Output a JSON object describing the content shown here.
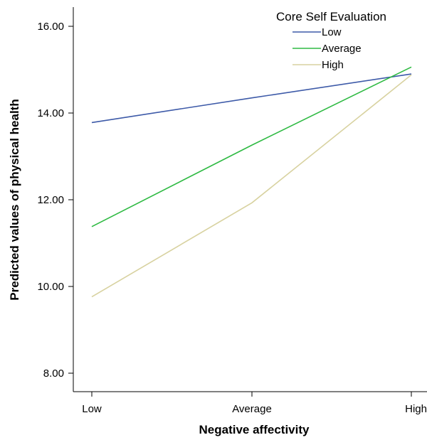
{
  "chart_data": {
    "type": "line",
    "title": "",
    "xlabel": "Negative affectivity",
    "ylabel": "Predicted values of physical health",
    "categories": [
      "Low",
      "Average",
      "High"
    ],
    "ylim": [
      7.6,
      16.4
    ],
    "yticks": [
      8.0,
      10.0,
      12.0,
      14.0,
      16.0
    ],
    "ytick_labels": [
      "8.00",
      "10.00",
      "12.00",
      "14.00",
      "16.00"
    ],
    "grid": false,
    "legend": {
      "title": "Core Self Evaluation",
      "placement": "top-right"
    },
    "series": [
      {
        "name": "Low",
        "color": "#3d5aa8",
        "values": [
          13.78,
          14.35,
          14.9
        ]
      },
      {
        "name": "Average",
        "color": "#2fba43",
        "values": [
          11.38,
          13.26,
          15.06
        ]
      },
      {
        "name": "High",
        "color": "#d8d2a0",
        "values": [
          9.76,
          11.93,
          14.88
        ]
      }
    ]
  }
}
